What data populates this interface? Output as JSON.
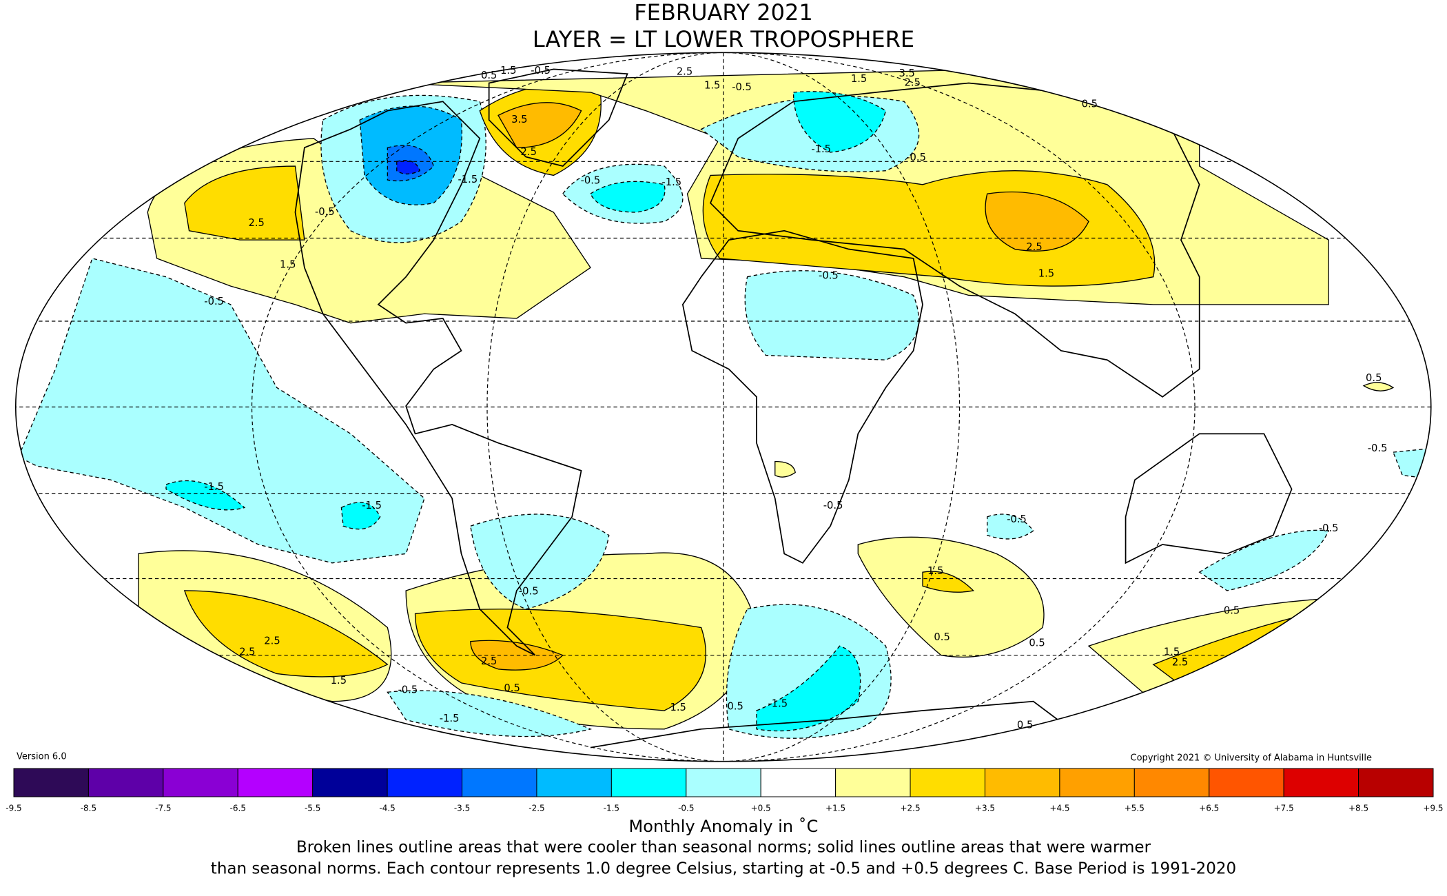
{
  "title": [
    "FEBRUARY 2021",
    "LAYER = LT LOWER TROPOSPHERE"
  ],
  "version": "Version 6.0",
  "copyright": "Copyright 2021 © University of Alabama in Huntsville",
  "colorbar": {
    "colors": [
      "#2e0a57",
      "#5e00a8",
      "#8a00d4",
      "#b400ff",
      "#000099",
      "#0022ff",
      "#0077ff",
      "#00bbff",
      "#00ffff",
      "#aaffff",
      "#ffffff",
      "#ffff99",
      "#ffdd00",
      "#ffbb00",
      "#ffa000",
      "#ff8800",
      "#ff5500",
      "#dd0000",
      "#b80000"
    ],
    "ticks": [
      "-9.5",
      "-8.5",
      "-7.5",
      "-6.5",
      "-5.5",
      "-4.5",
      "-3.5",
      "-2.5",
      "-1.5",
      "-0.5",
      "+0.5",
      "+1.5",
      "+2.5",
      "+3.5",
      "+4.5",
      "+5.5",
      "+6.5",
      "+7.5",
      "+8.5",
      "+9.5"
    ],
    "label": "Monthly Anomaly in ˚C"
  },
  "note": [
    "Broken lines outline areas that were cooler than seasonal norms; solid lines outline areas that were warmer",
    "than seasonal norms. Each contour represents 1.0 degree Celsius, starting at -0.5 and +0.5 degrees C. Base Period is 1991-2020"
  ],
  "contour_labels": [
    "0.5",
    "1.5",
    "-0.5",
    "2.5",
    "1.5",
    "-0.5",
    "3.5",
    "1.5",
    "2.5",
    "0.5",
    "3.5",
    "2.5",
    "-0.5",
    "-1.5",
    "-1.5",
    "-0.5",
    "2.5",
    "1.5",
    "-0.5",
    "-1.5",
    "-0.5",
    "2.5",
    "1.5",
    "-0.5",
    "0.5",
    "-1.5",
    "-1.5",
    "-0.5",
    "-0.5",
    "-0.5",
    "-0.5",
    "-0.5",
    "1.5",
    "0.5",
    "0.5",
    "0.5",
    "2.5",
    "2.5",
    "1.5",
    "2.5",
    "0.5",
    "1.5",
    "-0.5",
    "-1.5",
    "0.5",
    "-1.5",
    "1.5",
    "2.5",
    "0.5"
  ]
}
